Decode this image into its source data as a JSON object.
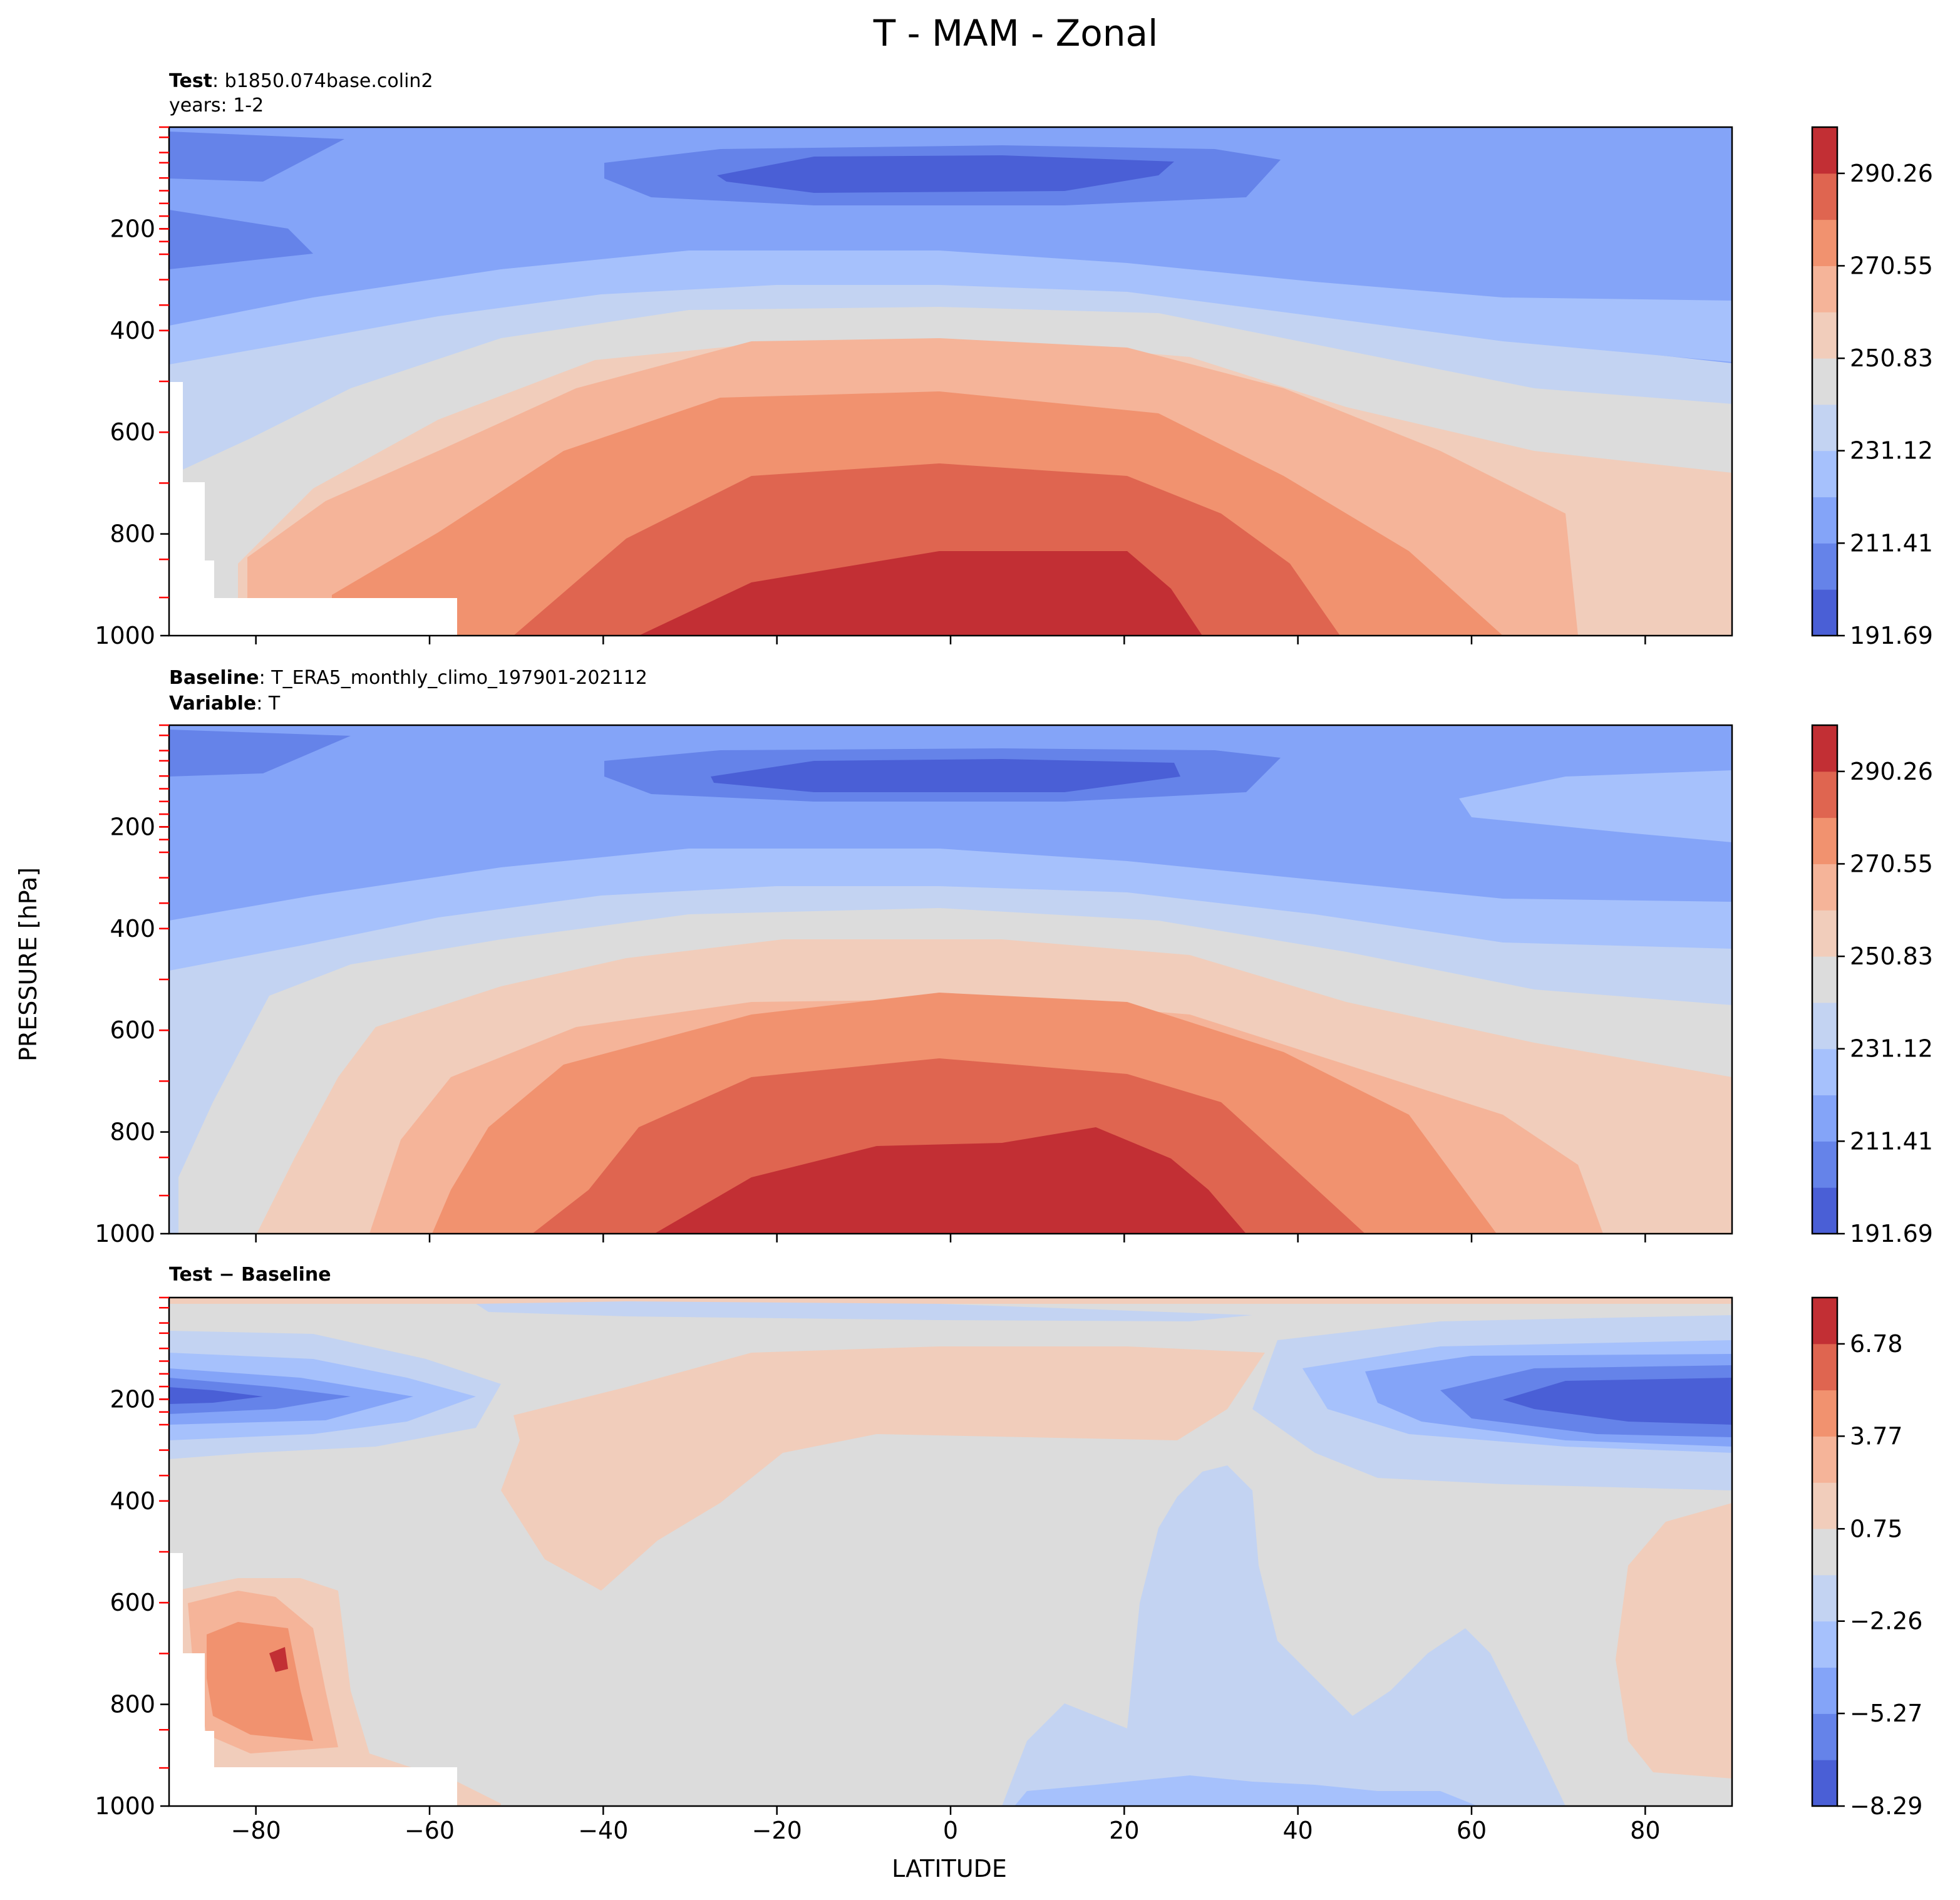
{
  "figure": {
    "title": "T - MAM - Zonal",
    "xlabel": "LATITUDE",
    "ylabel": "PRESSURE [hPa]"
  },
  "panels": [
    {
      "id": "test",
      "sub1": {
        "bold": "Test",
        "text": ": b1850.074base.colin2"
      },
      "sub2": {
        "bold": "",
        "text": "years: 1-2"
      }
    },
    {
      "id": "baseline",
      "sub1": {
        "bold": "Baseline",
        "text": ": T_ERA5_monthly_climo_197901-202112"
      },
      "sub2": {
        "bold": "Variable",
        "text": ": T"
      }
    },
    {
      "id": "diff",
      "sub1": {
        "bold": "Test − Baseline",
        "text": ""
      },
      "sub2": {
        "bold": "",
        "text": ""
      }
    }
  ],
  "chart_data": [
    {
      "type": "heatmap",
      "title": "Test : b1850.074base.colin2 / years: 1-2",
      "xlabel": "LATITUDE",
      "ylabel": "PRESSURE [hPa]",
      "xlim": [
        -90,
        90
      ],
      "ylim": [
        1000,
        0
      ],
      "x_ticks": [
        -80,
        -60,
        -40,
        -20,
        0,
        20,
        40,
        60,
        80
      ],
      "y_ticks": [
        200,
        400,
        600,
        800,
        1000
      ],
      "x_tick_labels": [
        "−80",
        "−60",
        "−40",
        "−20",
        "0",
        "20",
        "40",
        "60",
        "80"
      ],
      "y_tick_labels": [
        "200",
        "400",
        "600",
        "800",
        "1000"
      ],
      "colorbar_levels": [
        191.69,
        201.55,
        211.41,
        221.26,
        231.12,
        240.98,
        250.83,
        260.69,
        270.55,
        280.4,
        290.26,
        300.12
      ],
      "colorbar_tick_labels": [
        "191.69",
        "211.41",
        "231.12",
        "250.83",
        "270.55",
        "290.26"
      ],
      "colormap": "coolwarm",
      "values_sample": {
        "lat": [
          -80,
          -60,
          -40,
          -20,
          0,
          20,
          40,
          60,
          80
        ],
        "p1000": [
          null,
          null,
          265,
          283,
          291,
          288,
          278,
          268,
          255
        ],
        "p600": [
          235,
          245,
          255,
          265,
          270,
          268,
          262,
          252,
          244
        ],
        "p200": [
          208,
          215,
          225,
          222,
          218,
          222,
          228,
          220,
          215
        ],
        "p50": [
          205,
          210,
          212,
          200,
          195,
          200,
          212,
          215,
          215
        ]
      }
    },
    {
      "type": "heatmap",
      "title": "Baseline : T_ERA5_monthly_climo_197901-202112 / Variable : T",
      "xlabel": "LATITUDE",
      "ylabel": "PRESSURE [hPa]",
      "xlim": [
        -90,
        90
      ],
      "ylim": [
        1000,
        0
      ],
      "x_ticks": [
        -80,
        -60,
        -40,
        -20,
        0,
        20,
        40,
        60,
        80
      ],
      "y_ticks": [
        200,
        400,
        600,
        800,
        1000
      ],
      "x_tick_labels": [
        "−80",
        "−60",
        "−40",
        "−20",
        "0",
        "20",
        "40",
        "60",
        "80"
      ],
      "y_tick_labels": [
        "200",
        "400",
        "600",
        "800",
        "1000"
      ],
      "colorbar_levels": [
        191.69,
        201.55,
        211.41,
        221.26,
        231.12,
        240.98,
        250.83,
        260.69,
        270.55,
        280.4,
        290.26,
        300.12
      ],
      "colorbar_tick_labels": [
        "191.69",
        "211.41",
        "231.12",
        "250.83",
        "270.55",
        "290.26"
      ],
      "colormap": "coolwarm",
      "values_sample": {
        "lat": [
          -80,
          -60,
          -40,
          -20,
          0,
          20,
          40,
          60,
          80
        ],
        "p1000": [
          240,
          262,
          272,
          284,
          292,
          290,
          278,
          266,
          256
        ],
        "p600": [
          240,
          248,
          256,
          266,
          272,
          270,
          262,
          252,
          246
        ],
        "p200": [
          213,
          216,
          224,
          222,
          218,
          222,
          228,
          222,
          224
        ],
        "p50": [
          206,
          212,
          212,
          200,
          195,
          200,
          212,
          216,
          216
        ]
      }
    },
    {
      "type": "heatmap",
      "title": "Test − Baseline",
      "xlabel": "LATITUDE",
      "ylabel": "PRESSURE [hPa]",
      "xlim": [
        -90,
        90
      ],
      "ylim": [
        1000,
        0
      ],
      "x_ticks": [
        -80,
        -60,
        -40,
        -20,
        0,
        20,
        40,
        60,
        80
      ],
      "y_ticks": [
        200,
        400,
        600,
        800,
        1000
      ],
      "x_tick_labels": [
        "−80",
        "−60",
        "−40",
        "−20",
        "0",
        "20",
        "40",
        "60",
        "80"
      ],
      "y_tick_labels": [
        "200",
        "400",
        "600",
        "800",
        "1000"
      ],
      "colorbar_levels": [
        -8.29,
        -6.78,
        -5.27,
        -3.77,
        -2.26,
        -0.75,
        0.75,
        2.26,
        3.77,
        5.27,
        6.78,
        8.29
      ],
      "colorbar_tick_labels": [
        "−8.29",
        "−5.27",
        "−2.26",
        "0.75",
        "3.77",
        "6.78"
      ],
      "colormap": "coolwarm",
      "values_sample": {
        "lat": [
          -80,
          -60,
          -40,
          -20,
          0,
          20,
          40,
          60,
          80
        ],
        "p800": [
          4,
          0,
          0,
          0,
          0,
          -1,
          -1,
          -1,
          1
        ],
        "p500": [
          2,
          0,
          1,
          0,
          0,
          -1,
          0,
          0,
          1
        ],
        "p200": [
          -6,
          -3,
          0,
          1,
          1,
          1,
          -3,
          -6,
          -8
        ],
        "p50": [
          -1,
          0,
          -1,
          -2,
          -2,
          -2,
          -1,
          -2,
          -2
        ]
      }
    }
  ],
  "colors": {
    "c0": "#4a5fd6",
    "c1": "#6583e9",
    "c2": "#84a4f8",
    "c3": "#a6c1fc",
    "c4": "#c3d3f2",
    "c5": "#dcdcdc",
    "c6": "#f1cdbb",
    "c7": "#f5b499",
    "c8": "#f1926f",
    "c9": "#df6550",
    "c10": "#c22f34",
    "tick_red": "#ff0000"
  }
}
